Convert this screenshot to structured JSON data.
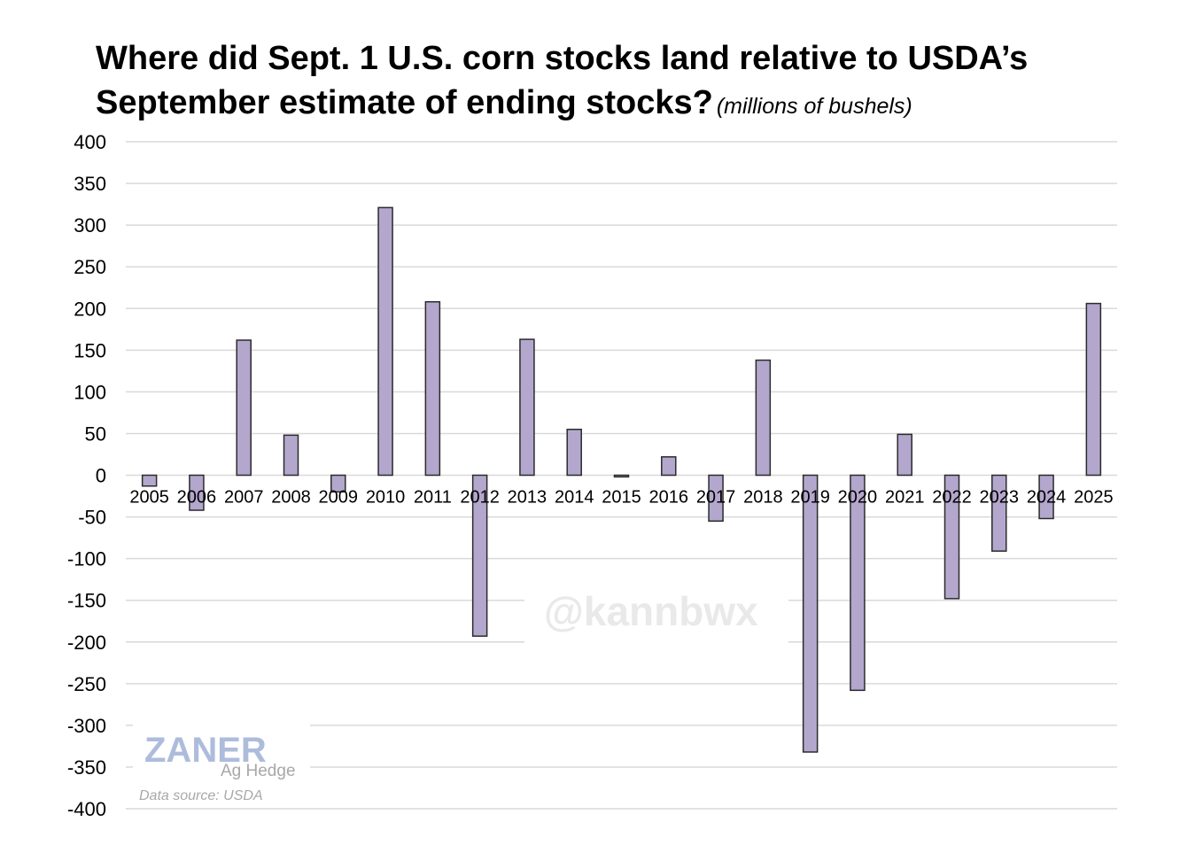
{
  "chart_data": {
    "type": "bar",
    "title_line1": "Where did Sept. 1 U.S. corn stocks land relative to USDA’s",
    "title_line2": "September estimate of ending stocks?",
    "subtitle": "(millions of bushels)",
    "xlabel": "",
    "ylabel": "",
    "ylim": [
      -400,
      400
    ],
    "yticks": [
      "400",
      "350",
      "300",
      "250",
      "200",
      "150",
      "100",
      "50",
      "0",
      "-50",
      "-100",
      "-150",
      "-200",
      "-250",
      "-300",
      "-350",
      "-400"
    ],
    "categories": [
      "2005",
      "2006",
      "2007",
      "2008",
      "2009",
      "2010",
      "2011",
      "2012",
      "2013",
      "2014",
      "2015",
      "2016",
      "2017",
      "2018",
      "2019",
      "2020",
      "2021",
      "2022",
      "2023",
      "2024",
      "2025"
    ],
    "values": [
      -13,
      -42,
      162,
      48,
      -20,
      321,
      208,
      -193,
      163,
      55,
      -2,
      22,
      -55,
      138,
      -332,
      -258,
      49,
      -148,
      -91,
      -52,
      206
    ],
    "grid": true,
    "bar_color": "#b4a7cd",
    "edge_color": "#2b2b2b"
  },
  "watermark": "@kannbwx",
  "logo": {
    "main": "ZANER",
    "sub": "Ag Hedge"
  },
  "source": "Data source: USDA"
}
